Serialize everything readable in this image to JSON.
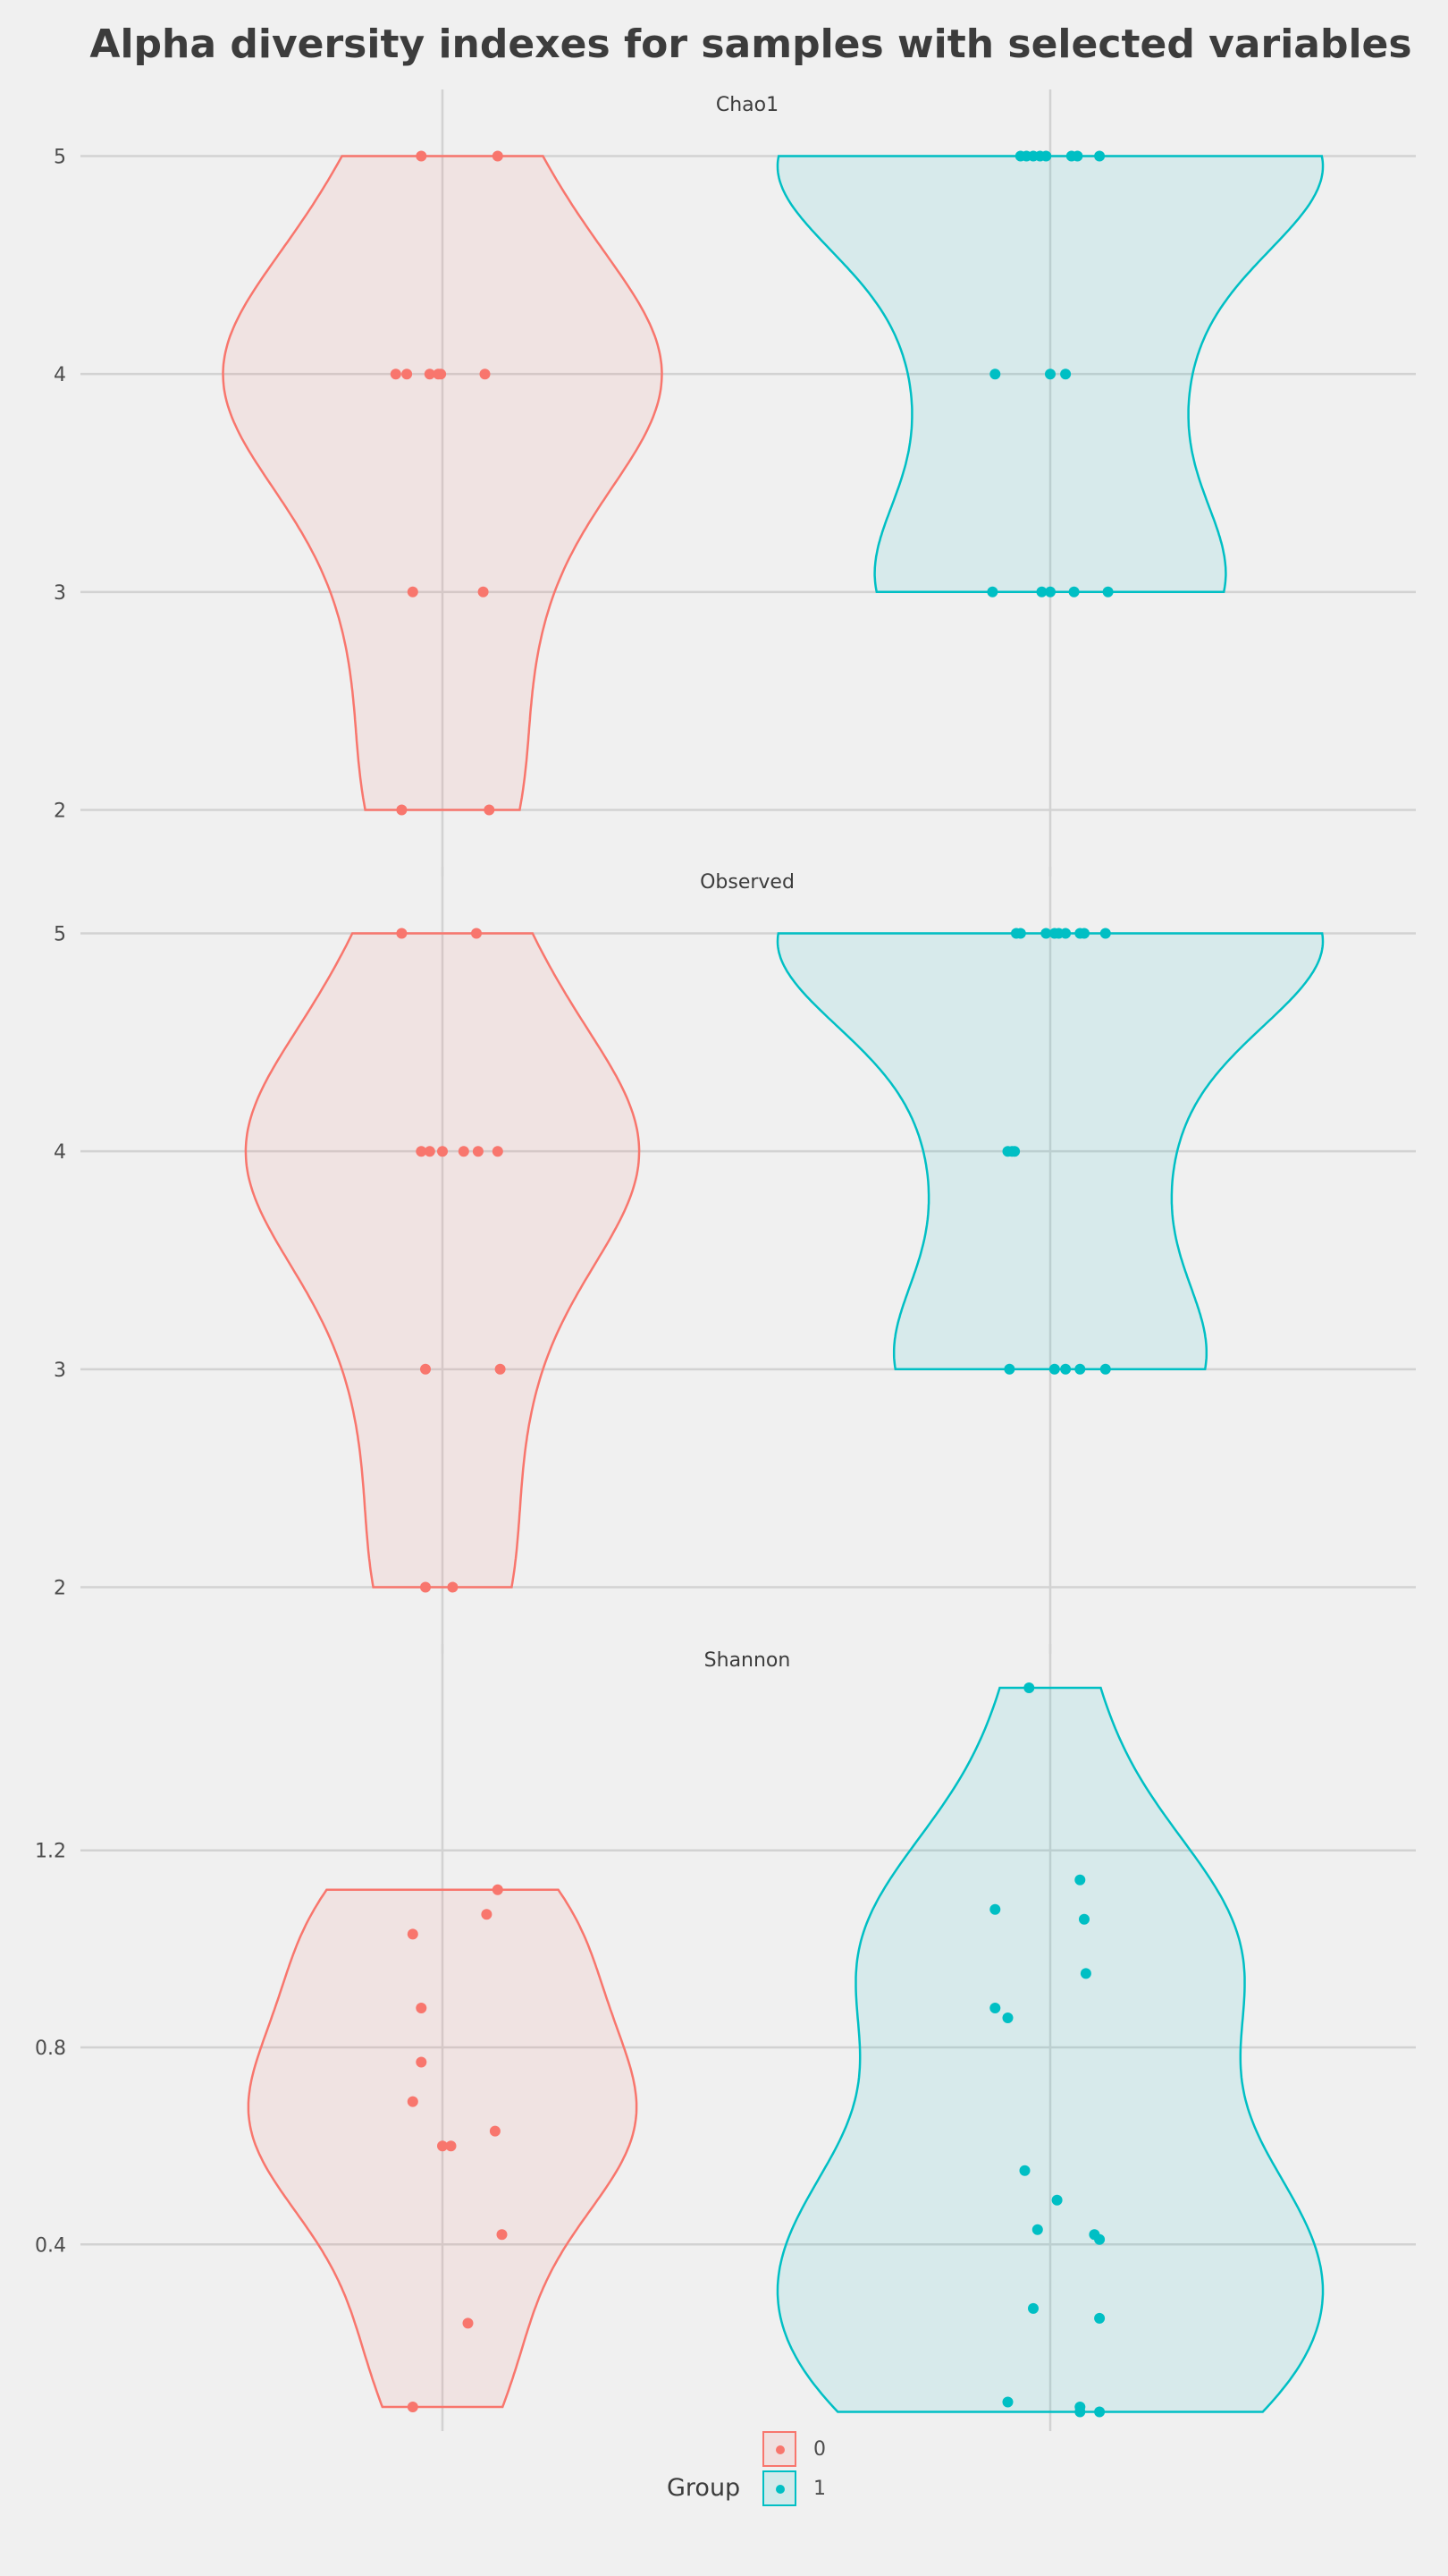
{
  "chart_data": {
    "type": "violin",
    "title": "Alpha diversity indexes for samples with selected variables",
    "legend": {
      "title": "Group",
      "position": "bottom",
      "entries": [
        {
          "name": "0",
          "color": "#f8766d"
        },
        {
          "name": "1",
          "color": "#00bfc4"
        }
      ]
    },
    "groups": [
      "0",
      "1"
    ],
    "grid": true,
    "panels": [
      {
        "name": "Chao1",
        "ylim": [
          1.85,
          5.15
        ],
        "yticks": [
          "2",
          "3",
          "4",
          "5"
        ],
        "series": [
          {
            "name": "0",
            "values": [
              5,
              5,
              4,
              4,
              4,
              4,
              4,
              4,
              3,
              3,
              2,
              2
            ],
            "jitter": [
              -0.25,
              0.65,
              -0.55,
              -0.42,
              -0.15,
              -0.05,
              -0.02,
              0.5,
              -0.35,
              0.48,
              -0.48,
              0.55
            ]
          },
          {
            "name": "1",
            "values": [
              5,
              5,
              5,
              5,
              5,
              5,
              5,
              5,
              4,
              4,
              4,
              3,
              3,
              3,
              3,
              3
            ],
            "jitter": [
              -0.35,
              -0.28,
              -0.2,
              -0.12,
              -0.05,
              0.25,
              0.32,
              0.58,
              -0.65,
              0.0,
              0.18,
              -0.68,
              -0.1,
              0.0,
              0.28,
              0.68
            ]
          }
        ],
        "violin_range": {
          "0": [
            2,
            5
          ],
          "1": [
            3,
            5
          ]
        }
      },
      {
        "name": "Observed",
        "ylim": [
          1.85,
          5.15
        ],
        "yticks": [
          "2",
          "3",
          "4",
          "5"
        ],
        "series": [
          {
            "name": "0",
            "values": [
              5,
              5,
              4,
              4,
              4,
              4,
              4,
              4,
              3,
              3,
              2,
              2
            ],
            "jitter": [
              -0.48,
              0.4,
              -0.25,
              -0.15,
              0.0,
              0.25,
              0.42,
              0.65,
              -0.2,
              0.68,
              -0.2,
              0.12
            ]
          },
          {
            "name": "1",
            "values": [
              5,
              5,
              5,
              5,
              5,
              5,
              5,
              5,
              5,
              4,
              4,
              4,
              3,
              3,
              3,
              3,
              3
            ],
            "jitter": [
              -0.4,
              -0.35,
              -0.05,
              0.05,
              0.1,
              0.18,
              0.35,
              0.4,
              0.65,
              -0.5,
              -0.45,
              -0.42,
              -0.48,
              0.05,
              0.18,
              0.35,
              0.65
            ]
          }
        ],
        "violin_range": {
          "0": [
            2,
            5
          ],
          "1": [
            3,
            5
          ]
        }
      },
      {
        "name": "Shannon",
        "ylim": [
          0.09,
          1.55
        ],
        "yticks": [
          "0.4",
          "0.8",
          "1.2"
        ],
        "series": [
          {
            "name": "0",
            "values": [
              1.12,
              1.07,
              1.03,
              0.88,
              0.77,
              0.69,
              0.63,
              0.6,
              0.6,
              0.42,
              0.24,
              0.07
            ],
            "jitter": [
              0.65,
              0.52,
              -0.35,
              -0.25,
              -0.25,
              -0.35,
              0.62,
              0.0,
              0.1,
              0.7,
              0.3,
              -0.35
            ]
          },
          {
            "name": "1",
            "values": [
              1.53,
              1.14,
              1.08,
              1.06,
              0.95,
              0.88,
              0.86,
              0.55,
              0.49,
              0.43,
              0.42,
              0.41,
              0.27,
              0.25,
              0.08,
              0.07,
              0.06,
              0.06
            ],
            "jitter": [
              -0.25,
              0.35,
              -0.65,
              0.4,
              0.42,
              -0.65,
              -0.5,
              -0.3,
              0.08,
              -0.15,
              0.52,
              0.58,
              -0.2,
              0.58,
              -0.5,
              0.35,
              0.35,
              0.58
            ]
          }
        ],
        "violin_range": {
          "0": [
            0.07,
            1.12
          ],
          "1": [
            0.06,
            1.53
          ]
        }
      }
    ]
  }
}
